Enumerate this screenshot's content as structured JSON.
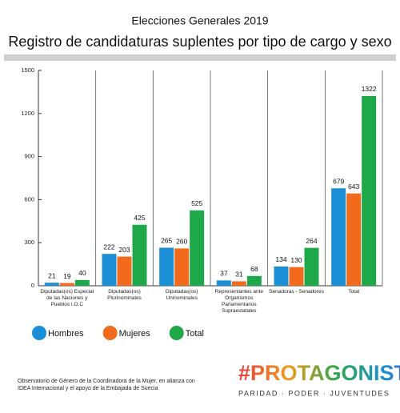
{
  "chart_data": {
    "type": "bar",
    "title": "Elecciones Generales 2019",
    "subtitle": "Registro de candidaturas suplentes por tipo de cargo y sexo",
    "categories": [
      "Diputadas(os) Especial de las Naciones y Pueblos I.O.C",
      "Diputadas(os) Plurinominales",
      "Diputadas(os) Uninominales",
      "Representantes ante Organismos Parlamentarios Supraestatales",
      "Senadoras - Senadores",
      "Total"
    ],
    "series": [
      {
        "name": "Hombres",
        "color": "#1a8fd6",
        "values": [
          21,
          222,
          265,
          37,
          134,
          679
        ]
      },
      {
        "name": "Mujeres",
        "color": "#f26a1b",
        "values": [
          19,
          203,
          260,
          31,
          130,
          643
        ]
      },
      {
        "name": "Total",
        "color": "#1fa84a",
        "values": [
          40,
          425,
          525,
          68,
          264,
          1322
        ]
      }
    ],
    "ylim": [
      0,
      1500
    ],
    "yticks": [
      0,
      300,
      600,
      900,
      1200,
      1500
    ],
    "legend": "bottom-left",
    "source": "Observatorio de Género de la Coordinadora de la Mujer, en alianza con IDEA Internacional y el apoyo de la Embajada de Suecia",
    "logo": {
      "title": "#PROTAGONISTAS",
      "tagline": "PARIDAD · PODER · JUVENTUDES"
    }
  }
}
